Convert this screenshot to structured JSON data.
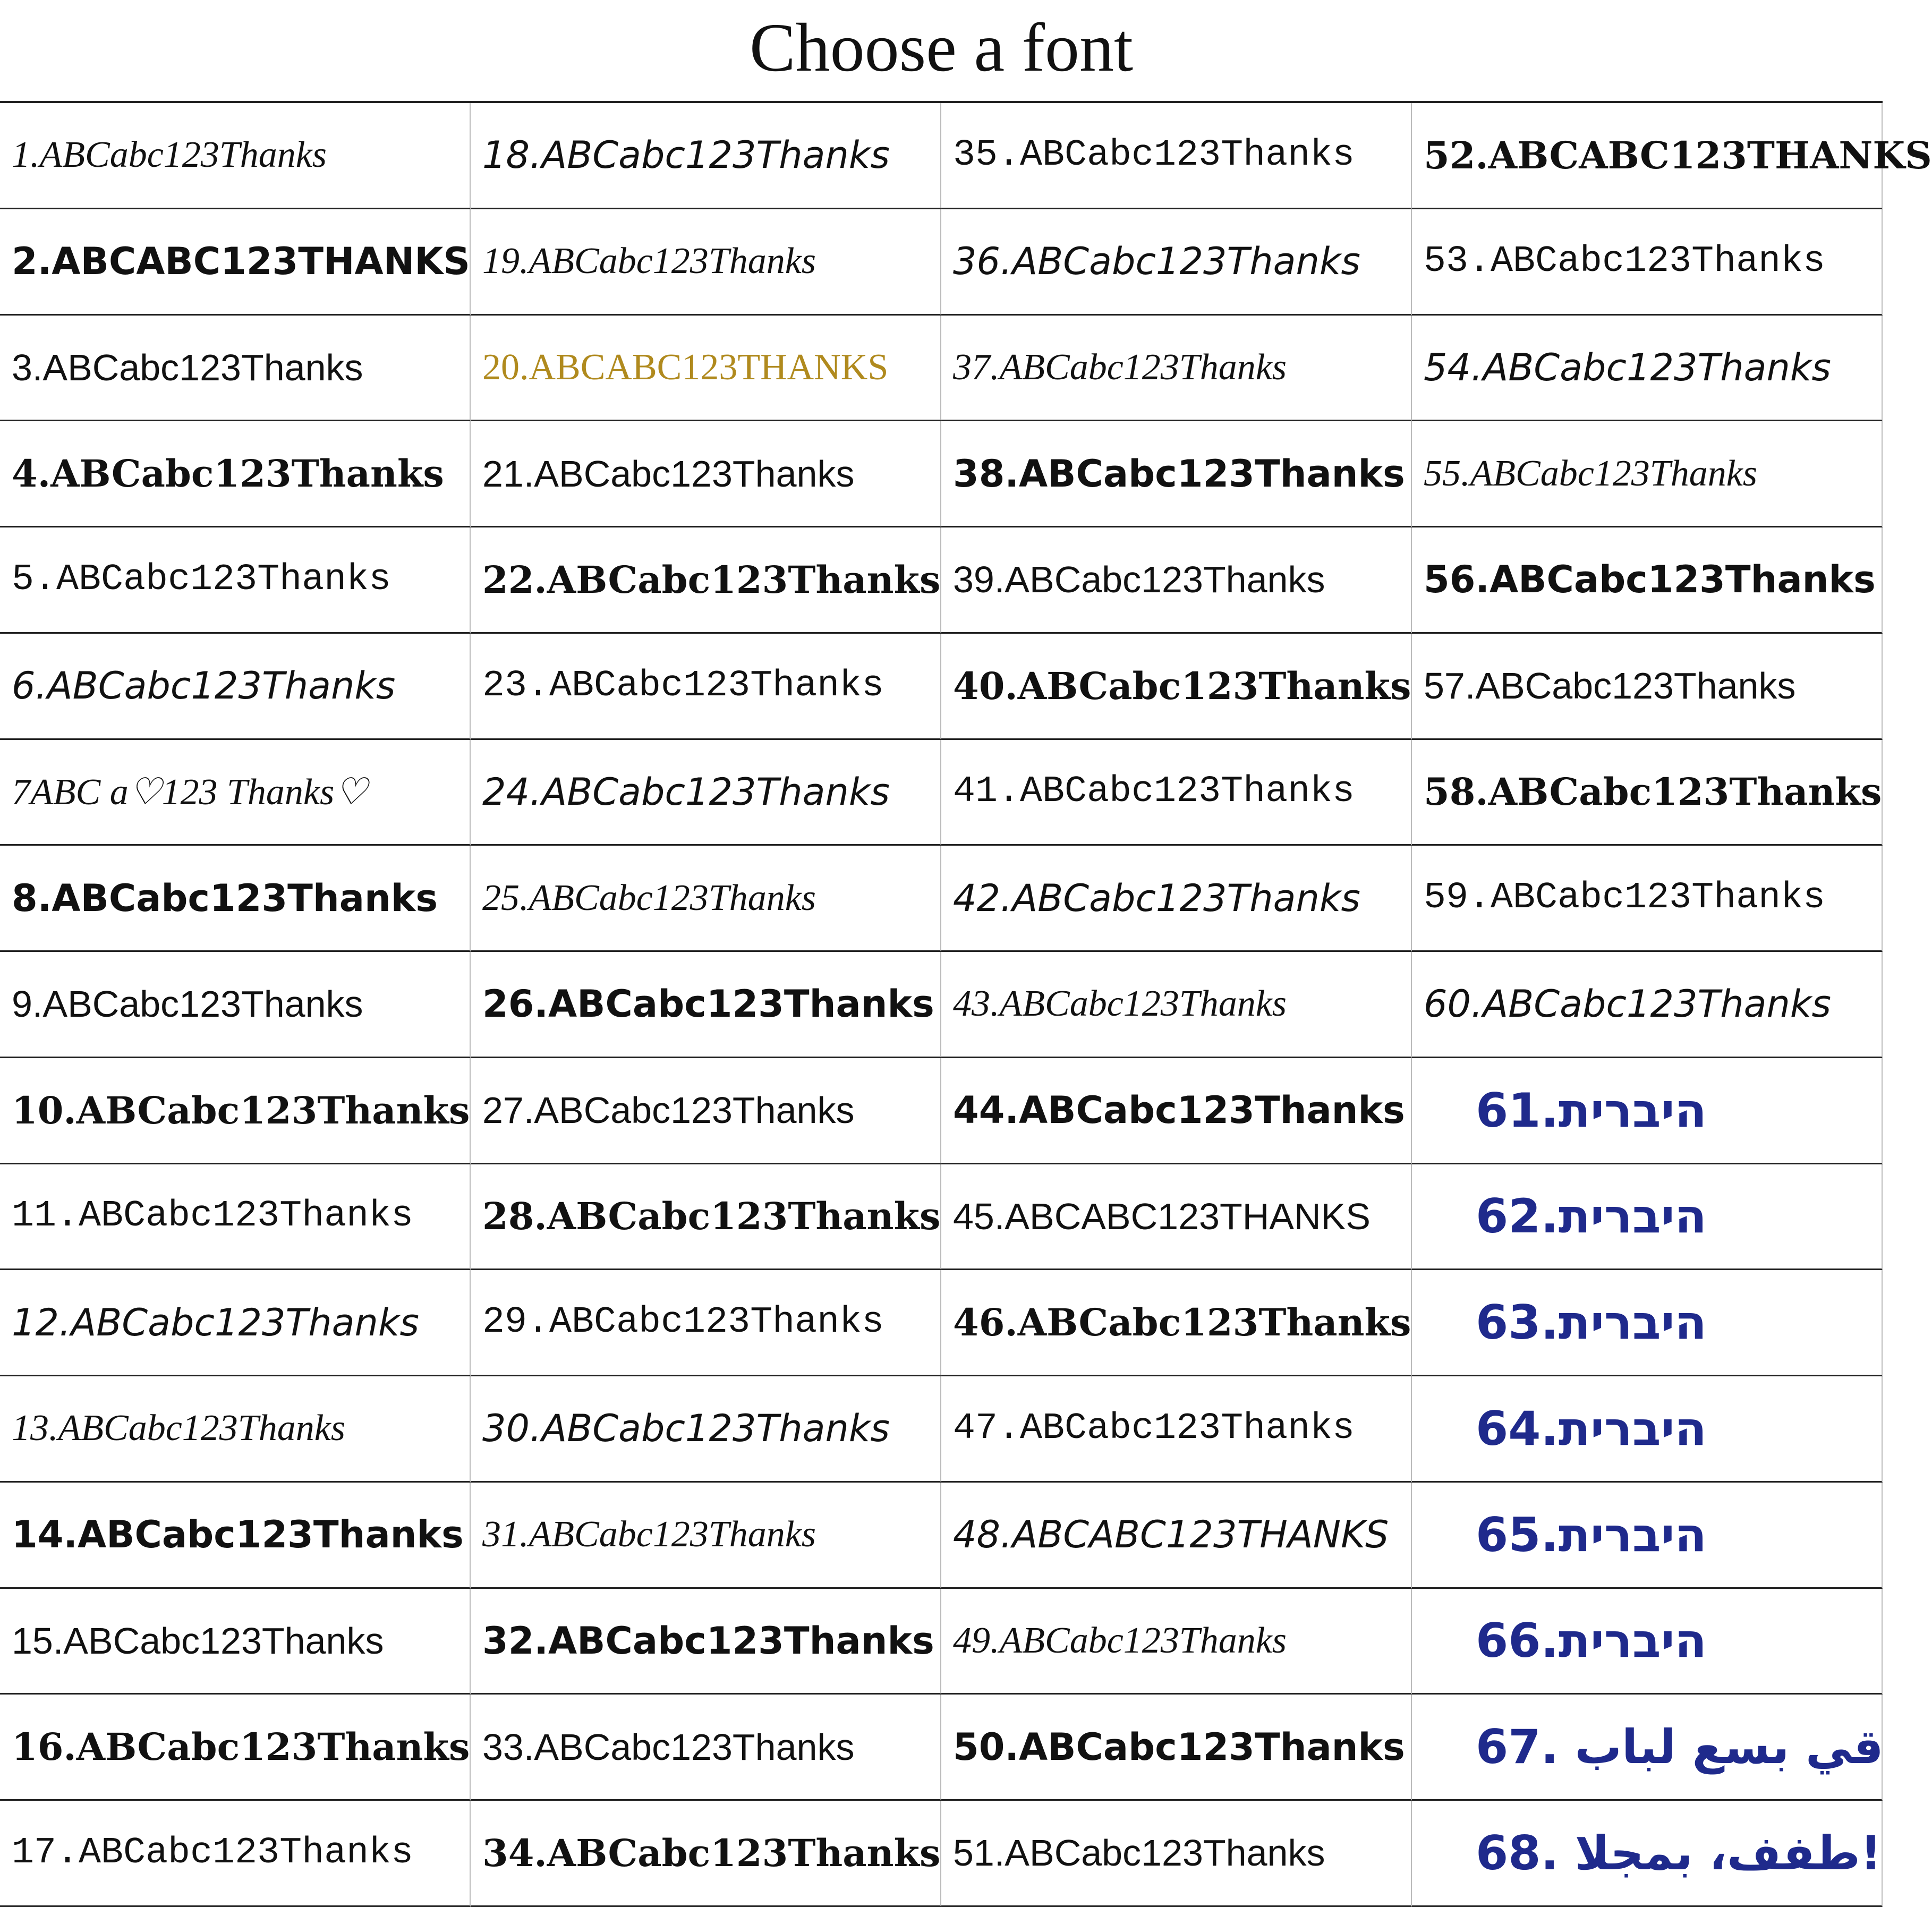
{
  "header": {
    "title": "Choose a font"
  },
  "columns": [
    [
      "1.ABCabc123Thanks",
      "2.ABCABC123THANKS",
      "3.ABCabc123Thanks",
      "4.ABCabc123Thanks",
      "5.ABCabc123Thanks",
      "6.ABCabc123Thanks",
      "7ABC a♡123 Thanks♡",
      "8.ABCabc123Thanks",
      "9.ABCabc123Thanks",
      "10.ABCabc123Thanks",
      "11.ABCabc123Thanks",
      "12.ABCabc123Thanks",
      "13.ABCabc123Thanks",
      "14.ABCabc123Thanks",
      "15.ABCabc123Thanks",
      "16.ABCabc123Thanks",
      "17.ABCabc123Thanks"
    ],
    [
      "18.ABCabc123Thanks",
      "19.ABCabc123Thanks",
      "20.ABCABC123THANKS",
      "21.ABCabc123Thanks",
      "22.ABCabc123Thanks",
      "23.ABCabc123Thanks",
      "24.ABCabc123Thanks",
      "25.ABCabc123Thanks",
      "26.ABCabc123Thanks",
      "27.ABCabc123Thanks",
      "28.ABCabc123Thanks",
      "29.ABCabc123Thanks",
      "30.ABCabc123Thanks",
      "31.ABCabc123Thanks",
      "32.ABCabc123Thanks",
      "33.ABCabc123Thanks",
      "34.ABCabc123Thanks"
    ],
    [
      "35.ABCabc123Thanks",
      "36.ABCabc123Thanks",
      "37.ABCabc123Thanks",
      "38.ABCabc123Thanks",
      "39.ABCabc123Thanks",
      "40.ABCabc123Thanks",
      "41.ABCabc123Thanks",
      "42.ABCabc123Thanks",
      "43.ABCabc123Thanks",
      "44.ABCabc123Thanks",
      "45.ABCABC123THANKS",
      "46.ABCabc123Thanks",
      "47.ABCabc123Thanks",
      "48.ABCABC123THANKS",
      "49.ABCabc123Thanks",
      "50.ABCabc123Thanks",
      "51.ABCabc123Thanks"
    ],
    [
      "52.ABCABC123THANKS",
      "53.ABCabc123Thanks",
      "54.ABCabc123Thanks",
      "55.ABCabc123Thanks",
      "56.ABCabc123Thanks",
      "57.ABCabc123Thanks",
      "58.ABCabc123Thanks",
      "59.ABCabc123Thanks",
      "60.ABCabc123Thanks",
      "61.היברית",
      "62.היברית",
      "63.היברית",
      "64.היברית",
      "65.היברית",
      "66.היברית",
      "67. قي بسع لباب",
      "68. طفف، بمجلا!"
    ]
  ]
}
